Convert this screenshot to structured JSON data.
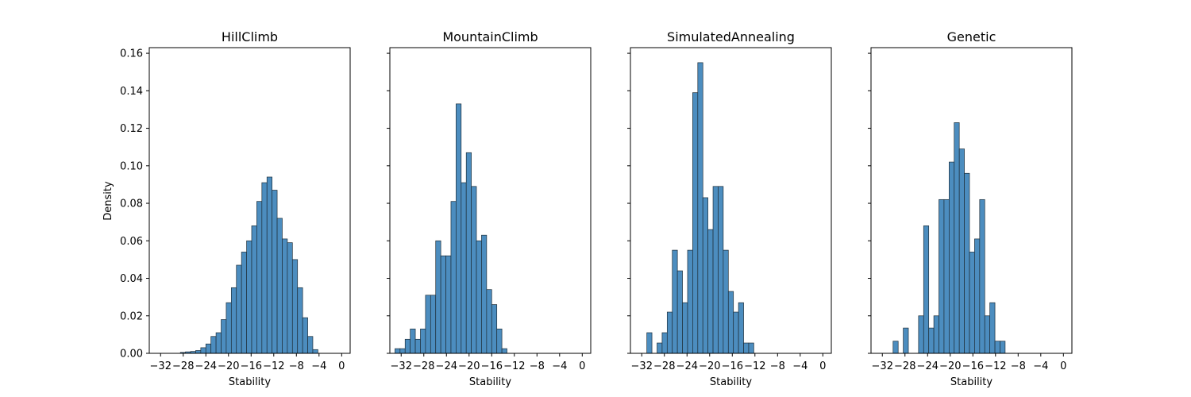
{
  "chart_data": [
    {
      "type": "bar",
      "title": "HillClimb",
      "xlabel": "Stability",
      "ylabel": "Density",
      "xlim": [
        -34,
        1.5
      ],
      "ylim": [
        0,
        0.163
      ],
      "xticks": [
        "−32",
        "−28",
        "−24",
        "−20",
        "−16",
        "−12",
        "−8",
        "−4",
        "0"
      ],
      "yticks": [
        "0.00",
        "0.02",
        "0.04",
        "0.06",
        "0.08",
        "0.10",
        "0.12",
        "0.14",
        "0.16"
      ],
      "bin_start": -28.5,
      "bin_width": 0.9,
      "values": [
        0.0005,
        0.0008,
        0.001,
        0.0015,
        0.003,
        0.005,
        0.009,
        0.011,
        0.018,
        0.027,
        0.035,
        0.047,
        0.054,
        0.06,
        0.068,
        0.081,
        0.091,
        0.094,
        0.087,
        0.072,
        0.061,
        0.059,
        0.05,
        0.035,
        0.019,
        0.009,
        0.002
      ]
    },
    {
      "type": "bar",
      "title": "MountainClimb",
      "xlabel": "Stability",
      "ylabel": "",
      "xlim": [
        -34,
        1.5
      ],
      "ylim": [
        0,
        0.163
      ],
      "xticks": [
        "−32",
        "−28",
        "−24",
        "−20",
        "−16",
        "−12",
        "−8",
        "−4",
        "0"
      ],
      "yticks": [
        "",
        "",
        "",
        "",
        "",
        "",
        "",
        "",
        ""
      ],
      "bin_start": -33.1,
      "bin_width": 0.9,
      "values": [
        0.0025,
        0.0025,
        0.0075,
        0.013,
        0.0075,
        0.013,
        0.031,
        0.031,
        0.06,
        0.052,
        0.052,
        0.081,
        0.133,
        0.091,
        0.107,
        0.089,
        0.06,
        0.063,
        0.034,
        0.026,
        0.013,
        0.0025
      ]
    },
    {
      "type": "bar",
      "title": "SimulatedAnnealing",
      "xlabel": "Stability",
      "ylabel": "",
      "xlim": [
        -34,
        1.5
      ],
      "ylim": [
        0,
        0.163
      ],
      "xticks": [
        "−32",
        "−28",
        "−24",
        "−20",
        "−16",
        "−12",
        "−8",
        "−4",
        "0"
      ],
      "yticks": [
        "",
        "",
        "",
        "",
        "",
        "",
        "",
        "",
        ""
      ],
      "bin_start": -31.1,
      "bin_width": 0.9,
      "values": [
        0.011,
        0,
        0.0055,
        0.011,
        0.022,
        0.055,
        0.044,
        0.027,
        0.055,
        0.139,
        0.155,
        0.083,
        0.066,
        0.089,
        0.089,
        0.055,
        0.033,
        0.022,
        0.027,
        0.0055,
        0.0055
      ]
    },
    {
      "type": "bar",
      "title": "Genetic",
      "xlabel": "Stability",
      "ylabel": "",
      "xlim": [
        -34,
        1.5
      ],
      "ylim": [
        0,
        0.163
      ],
      "xticks": [
        "−32",
        "−28",
        "−24",
        "−20",
        "−16",
        "−12",
        "−8",
        "−4",
        "0"
      ],
      "yticks": [
        "",
        "",
        "",
        "",
        "",
        "",
        "",
        "",
        ""
      ],
      "bin_start": -30.1,
      "bin_width": 0.9,
      "values": [
        0.0065,
        0,
        0.0135,
        0,
        0,
        0.02,
        0.068,
        0.0135,
        0.02,
        0.082,
        0.082,
        0.102,
        0.123,
        0.109,
        0.096,
        0.054,
        0.061,
        0.082,
        0.02,
        0.027,
        0.0065,
        0.0065
      ]
    }
  ]
}
